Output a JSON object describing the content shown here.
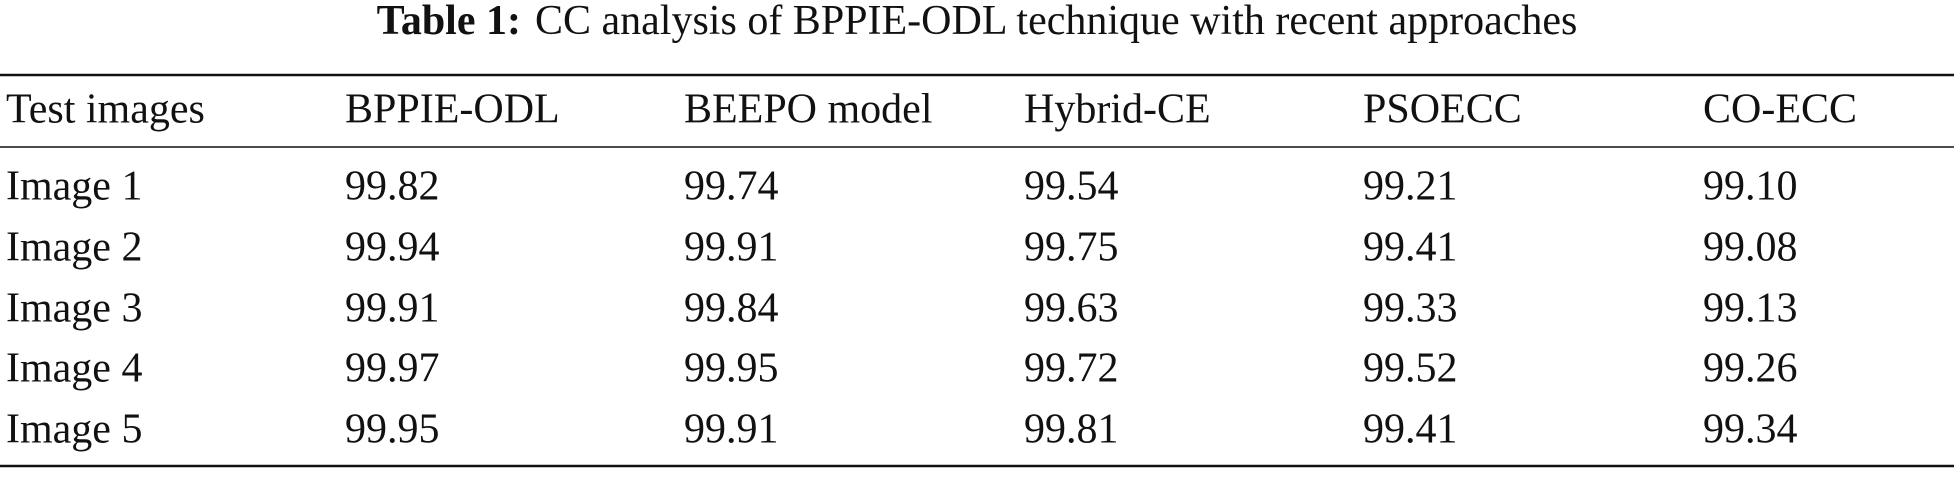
{
  "table": {
    "label": "Table 1:",
    "caption": "CC analysis of BPPIE-ODL technique with recent approaches",
    "header": [
      "Test images",
      "BPPIE-ODL",
      "BEEPO model",
      "Hybrid-CE",
      "PSOECC",
      "CO-ECC"
    ],
    "rows": [
      [
        "Image 1",
        "99.82",
        "99.74",
        "99.54",
        "99.21",
        "99.10"
      ],
      [
        "Image 2",
        "99.94",
        "99.91",
        "99.75",
        "99.41",
        "99.08"
      ],
      [
        "Image 3",
        "99.91",
        "99.84",
        "99.63",
        "99.33",
        "99.13"
      ],
      [
        "Image 4",
        "99.97",
        "99.95",
        "99.72",
        "99.52",
        "99.26"
      ],
      [
        "Image 5",
        "99.95",
        "99.91",
        "99.81",
        "99.41",
        "99.34"
      ]
    ]
  }
}
